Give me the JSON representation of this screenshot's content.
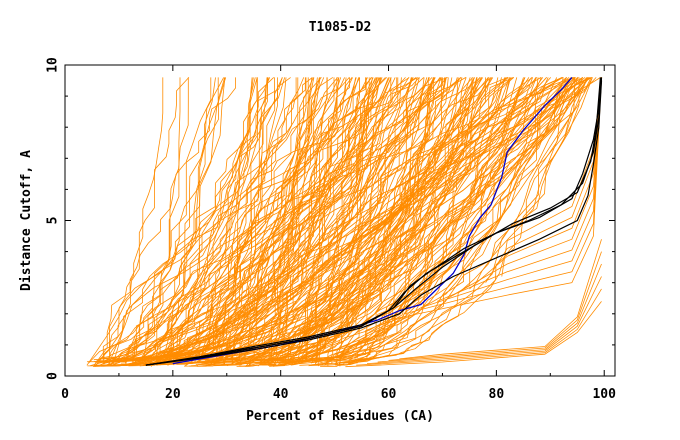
{
  "chart_data": {
    "type": "line",
    "title": "T1085-D2",
    "xlabel": "Percent of Residues (CA)",
    "ylabel": "Distance Cutoff, A",
    "xlim": [
      0,
      102
    ],
    "ylim": [
      0,
      10
    ],
    "x_ticks": [
      0,
      20,
      40,
      60,
      80,
      100
    ],
    "y_ticks": [
      0,
      5,
      10
    ],
    "grid": false,
    "colors": {
      "background_models": "#ff8c00",
      "highlight_blue": "#0000cc",
      "highlight_black": "#000000",
      "axes": "#000000"
    },
    "series": [
      {
        "role": "highlight",
        "color": "#0000cc",
        "points": [
          [
            20,
            0.4
          ],
          [
            30,
            0.7
          ],
          [
            40,
            1.0
          ],
          [
            50,
            1.4
          ],
          [
            58,
            1.8
          ],
          [
            62,
            2.1
          ],
          [
            66,
            2.3
          ],
          [
            69,
            2.8
          ],
          [
            72,
            3.3
          ],
          [
            74,
            3.9
          ],
          [
            75,
            4.5
          ],
          [
            77,
            5.1
          ],
          [
            79,
            5.5
          ],
          [
            81,
            6.4
          ],
          [
            82,
            7.2
          ],
          [
            85,
            7.9
          ],
          [
            89,
            8.7
          ],
          [
            92,
            9.2
          ],
          [
            94,
            9.6
          ]
        ]
      },
      {
        "role": "highlight",
        "color": "#000000",
        "points": [
          [
            15,
            0.35
          ],
          [
            25,
            0.6
          ],
          [
            35,
            0.9
          ],
          [
            45,
            1.2
          ],
          [
            55,
            1.6
          ],
          [
            61,
            2.2
          ],
          [
            64,
            2.9
          ],
          [
            68,
            3.4
          ],
          [
            74,
            4.1
          ],
          [
            80,
            4.6
          ],
          [
            88,
            5.1
          ],
          [
            94,
            5.7
          ],
          [
            96,
            6.5
          ],
          [
            98,
            7.6
          ],
          [
            99,
            8.6
          ],
          [
            99.5,
            9.6
          ]
        ]
      },
      {
        "role": "highlight",
        "color": "#000000",
        "points": [
          [
            15,
            0.35
          ],
          [
            25,
            0.58
          ],
          [
            35,
            0.85
          ],
          [
            45,
            1.15
          ],
          [
            55,
            1.55
          ],
          [
            62,
            2.0
          ],
          [
            66,
            2.6
          ],
          [
            72,
            3.2
          ],
          [
            80,
            3.8
          ],
          [
            88,
            4.4
          ],
          [
            95,
            5.0
          ],
          [
            97,
            5.8
          ],
          [
            98,
            6.8
          ],
          [
            99,
            8.0
          ],
          [
            99.5,
            9.5
          ]
        ]
      },
      {
        "role": "highlight",
        "color": "#000000",
        "points": [
          [
            15,
            0.35
          ],
          [
            25,
            0.62
          ],
          [
            35,
            0.95
          ],
          [
            45,
            1.25
          ],
          [
            55,
            1.65
          ],
          [
            60,
            2.1
          ],
          [
            63,
            2.7
          ],
          [
            67,
            3.3
          ],
          [
            73,
            3.9
          ],
          [
            80,
            4.6
          ],
          [
            86,
            5.0
          ],
          [
            92,
            5.5
          ],
          [
            96,
            6.2
          ],
          [
            98,
            7.2
          ],
          [
            99,
            8.3
          ],
          [
            99.5,
            9.6
          ]
        ]
      },
      {
        "role": "highlight",
        "color": "#000000",
        "points": [
          [
            15,
            0.35
          ],
          [
            25,
            0.6
          ],
          [
            35,
            0.9
          ],
          [
            45,
            1.2
          ],
          [
            55,
            1.6
          ],
          [
            61,
            2.2
          ],
          [
            65,
            2.8
          ],
          [
            70,
            3.5
          ],
          [
            76,
            4.2
          ],
          [
            83,
            4.9
          ],
          [
            90,
            5.4
          ],
          [
            95,
            5.9
          ],
          [
            97.5,
            6.9
          ],
          [
            98.5,
            7.9
          ],
          [
            99.3,
            9.6
          ]
        ]
      }
    ]
  }
}
